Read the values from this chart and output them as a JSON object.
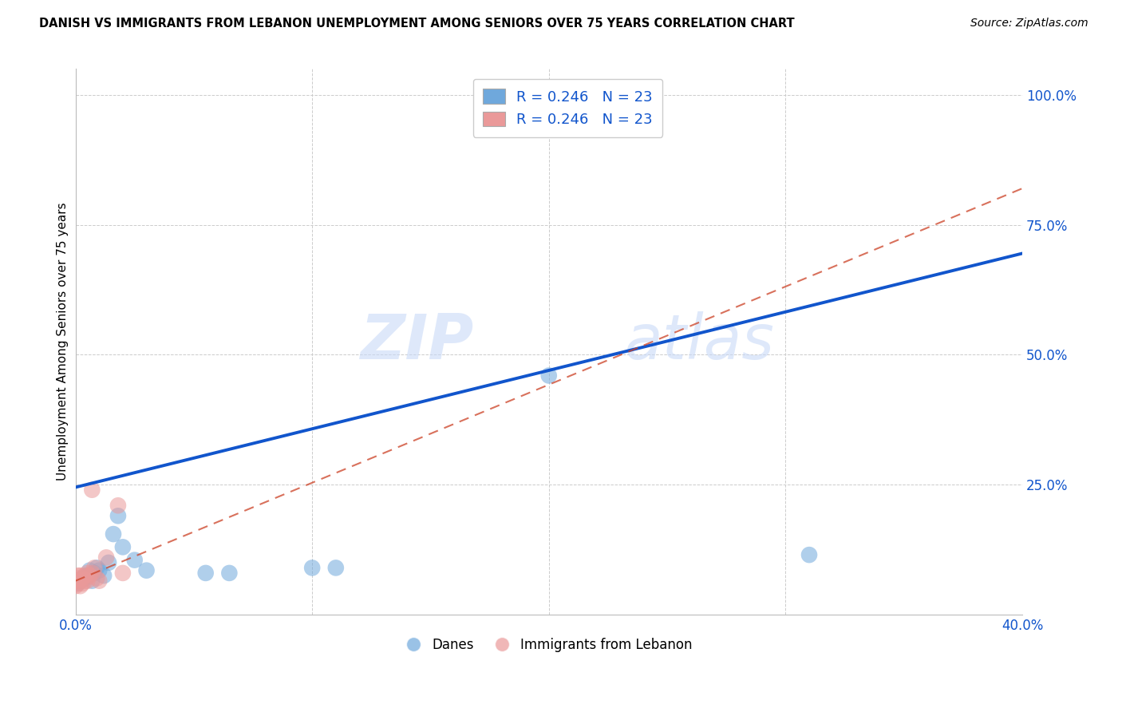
{
  "title": "DANISH VS IMMIGRANTS FROM LEBANON UNEMPLOYMENT AMONG SENIORS OVER 75 YEARS CORRELATION CHART",
  "source": "Source: ZipAtlas.com",
  "ylabel": "Unemployment Among Seniors over 75 years",
  "xlim": [
    0.0,
    0.4
  ],
  "ylim": [
    0.0,
    1.05
  ],
  "xticks": [
    0.0,
    0.1,
    0.2,
    0.3,
    0.4
  ],
  "xtick_labels": [
    "0.0%",
    "",
    "",
    "",
    "40.0%"
  ],
  "yticks": [
    0.0,
    0.25,
    0.5,
    0.75,
    1.0
  ],
  "ytick_labels": [
    "",
    "25.0%",
    "50.0%",
    "75.0%",
    "100.0%"
  ],
  "danes_x": [
    0.001,
    0.002,
    0.003,
    0.004,
    0.005,
    0.006,
    0.007,
    0.008,
    0.009,
    0.01,
    0.012,
    0.014,
    0.016,
    0.018,
    0.02,
    0.025,
    0.03,
    0.055,
    0.065,
    0.1,
    0.11,
    0.2,
    0.31
  ],
  "danes_y": [
    0.06,
    0.065,
    0.07,
    0.07,
    0.075,
    0.085,
    0.065,
    0.08,
    0.09,
    0.085,
    0.075,
    0.1,
    0.155,
    0.19,
    0.13,
    0.105,
    0.085,
    0.08,
    0.08,
    0.09,
    0.09,
    0.46,
    0.115
  ],
  "lebanon_x": [
    0.0,
    0.0,
    0.001,
    0.001,
    0.001,
    0.002,
    0.002,
    0.002,
    0.003,
    0.003,
    0.004,
    0.004,
    0.005,
    0.005,
    0.006,
    0.007,
    0.007,
    0.008,
    0.009,
    0.01,
    0.013,
    0.018,
    0.02
  ],
  "lebanon_y": [
    0.055,
    0.065,
    0.06,
    0.07,
    0.075,
    0.055,
    0.065,
    0.075,
    0.06,
    0.07,
    0.065,
    0.075,
    0.065,
    0.08,
    0.075,
    0.08,
    0.24,
    0.09,
    0.07,
    0.065,
    0.11,
    0.21,
    0.08
  ],
  "danes_line_x0": 0.0,
  "danes_line_y0": 0.245,
  "danes_line_x1": 0.4,
  "danes_line_y1": 0.695,
  "lebanon_line_x0": 0.0,
  "lebanon_line_y0": 0.065,
  "lebanon_line_x1": 0.4,
  "lebanon_line_y1": 0.82,
  "danes_color": "#6fa8dc",
  "lebanon_color": "#ea9999",
  "danes_line_color": "#1155cc",
  "lebanon_line_color": "#cc4125",
  "danes_R": 0.246,
  "danes_N": 23,
  "lebanon_R": 0.246,
  "lebanon_N": 23,
  "legend_label_danes": "Danes",
  "legend_label_lebanon": "Immigrants from Lebanon",
  "watermark_part1": "ZIP",
  "watermark_part2": "atlas",
  "r_label_color": "#1155cc",
  "background_color": "#ffffff",
  "grid_color": "#cccccc"
}
